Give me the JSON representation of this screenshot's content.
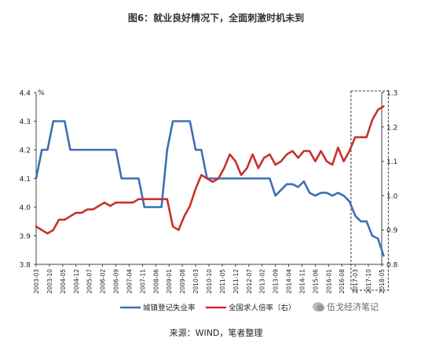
{
  "title": "图6：就业良好情况下，全面刺激时机未到",
  "source": "来源：WIND，笔者整理",
  "watermark": "伍戈经济笔记",
  "colors": {
    "blue": "#3D6FB6",
    "red": "#C8312E"
  },
  "chart_data": {
    "type": "line",
    "ylabel_left": "%",
    "ylim_left": [
      3.8,
      4.4
    ],
    "ylim_right": [
      0.8,
      1.3
    ],
    "yticks_left": [
      "3.8",
      "3.9",
      "4.0",
      "4.1",
      "4.2",
      "4.3",
      "4.4"
    ],
    "yticks_right": [
      "0.8",
      "0.9",
      "1.0",
      "1.1",
      "1.2",
      "1.3"
    ],
    "xticks": [
      "2003-03",
      "2003-10",
      "2004-05",
      "2004-12",
      "2005-07",
      "2006-02",
      "2006-09",
      "2007-04",
      "2007-11",
      "2008-06",
      "2009-01",
      "2009-08",
      "2010-03",
      "2010-10",
      "2011-05",
      "2011-12",
      "2012-07",
      "2013-02",
      "2013-09",
      "2014-04",
      "2014-11",
      "2015-06",
      "2016-01",
      "2016-08",
      "2017-03",
      "2017-10",
      "2018-05"
    ],
    "series": [
      {
        "name": "城镇登记失业率",
        "axis": "left",
        "x": [
          "2003-03",
          "2003-06",
          "2003-09",
          "2003-12",
          "2004-03",
          "2004-06",
          "2004-09",
          "2004-12",
          "2005-06",
          "2005-12",
          "2006-06",
          "2006-09",
          "2006-12",
          "2007-03",
          "2007-06",
          "2007-09",
          "2007-12",
          "2008-03",
          "2008-06",
          "2008-09",
          "2008-12",
          "2009-03",
          "2009-06",
          "2009-09",
          "2009-12",
          "2010-03",
          "2010-06",
          "2010-09",
          "2010-12",
          "2011-06",
          "2011-12",
          "2012-06",
          "2012-12",
          "2013-06",
          "2013-09",
          "2013-12",
          "2014-03",
          "2014-06",
          "2014-09",
          "2014-12",
          "2015-03",
          "2015-06",
          "2015-09",
          "2015-12",
          "2016-03",
          "2016-06",
          "2016-09",
          "2016-12",
          "2017-03",
          "2017-06",
          "2017-09",
          "2017-12",
          "2018-03",
          "2018-06"
        ],
        "values": [
          4.1,
          4.2,
          4.2,
          4.3,
          4.3,
          4.3,
          4.2,
          4.2,
          4.2,
          4.2,
          4.2,
          4.2,
          4.1,
          4.1,
          4.1,
          4.1,
          4.0,
          4.0,
          4.0,
          4.0,
          4.2,
          4.3,
          4.3,
          4.3,
          4.3,
          4.2,
          4.2,
          4.1,
          4.1,
          4.1,
          4.1,
          4.1,
          4.1,
          4.1,
          4.04,
          4.06,
          4.08,
          4.08,
          4.07,
          4.09,
          4.05,
          4.04,
          4.05,
          4.05,
          4.04,
          4.05,
          4.04,
          4.02,
          3.97,
          3.95,
          3.95,
          3.9,
          3.89,
          3.83
        ]
      },
      {
        "name": "全国求人倍率（右）",
        "axis": "right",
        "x": [
          "2003-03",
          "2003-06",
          "2003-09",
          "2003-12",
          "2004-03",
          "2004-06",
          "2004-09",
          "2004-12",
          "2005-03",
          "2005-06",
          "2005-09",
          "2005-12",
          "2006-03",
          "2006-06",
          "2006-09",
          "2006-12",
          "2007-03",
          "2007-06",
          "2007-09",
          "2007-12",
          "2008-03",
          "2008-06",
          "2008-09",
          "2008-12",
          "2009-03",
          "2009-06",
          "2009-09",
          "2009-12",
          "2010-03",
          "2010-06",
          "2010-09",
          "2010-12",
          "2011-03",
          "2011-06",
          "2011-09",
          "2011-12",
          "2012-03",
          "2012-06",
          "2012-09",
          "2012-12",
          "2013-03",
          "2013-06",
          "2013-09",
          "2013-12",
          "2014-03",
          "2014-06",
          "2014-09",
          "2014-12",
          "2015-03",
          "2015-06",
          "2015-09",
          "2015-12",
          "2016-03",
          "2016-06",
          "2016-09",
          "2016-12",
          "2017-03",
          "2017-06",
          "2017-09",
          "2017-12",
          "2018-03",
          "2018-06"
        ],
        "values": [
          0.91,
          0.9,
          0.89,
          0.9,
          0.93,
          0.93,
          0.94,
          0.95,
          0.95,
          0.96,
          0.96,
          0.97,
          0.98,
          0.97,
          0.98,
          0.98,
          0.98,
          0.98,
          0.99,
          0.99,
          0.99,
          0.99,
          0.99,
          0.99,
          0.91,
          0.9,
          0.94,
          0.97,
          1.02,
          1.06,
          1.05,
          1.04,
          1.05,
          1.08,
          1.12,
          1.1,
          1.06,
          1.08,
          1.12,
          1.08,
          1.11,
          1.12,
          1.09,
          1.1,
          1.12,
          1.13,
          1.11,
          1.13,
          1.13,
          1.1,
          1.13,
          1.1,
          1.09,
          1.14,
          1.1,
          1.13,
          1.17,
          1.17,
          1.17,
          1.22,
          1.25,
          1.26
        ]
      }
    ],
    "legend_position": "bottom"
  }
}
